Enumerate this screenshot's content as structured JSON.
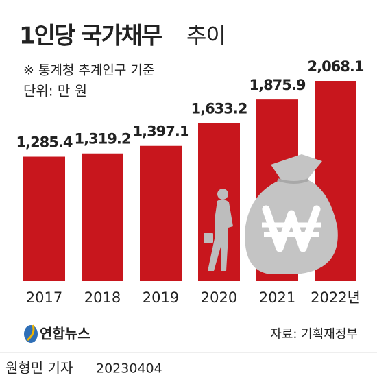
{
  "chart_data": {
    "type": "bar",
    "title": {
      "main": "1인당 국가채무",
      "suffix": "추이"
    },
    "note": "※ 통계청 추계인구 기준",
    "unit": "단위: 만 원",
    "categories": [
      "2017",
      "2018",
      "2019",
      "2020",
      "2021",
      "2022년"
    ],
    "values": [
      1285.4,
      1319.2,
      1397.1,
      1633.2,
      1875.9,
      2068.1
    ],
    "value_labels": [
      "1,285.4",
      "1,319.2",
      "1,397.1",
      "1,633.2",
      "1,875.9",
      "2,068.1"
    ],
    "color": "#c8161d",
    "ylim": [
      0,
      2100
    ],
    "source": "자료: 기획재정부",
    "logo": "연합뉴스",
    "byline": "원형민 기자",
    "date": "20230404"
  }
}
